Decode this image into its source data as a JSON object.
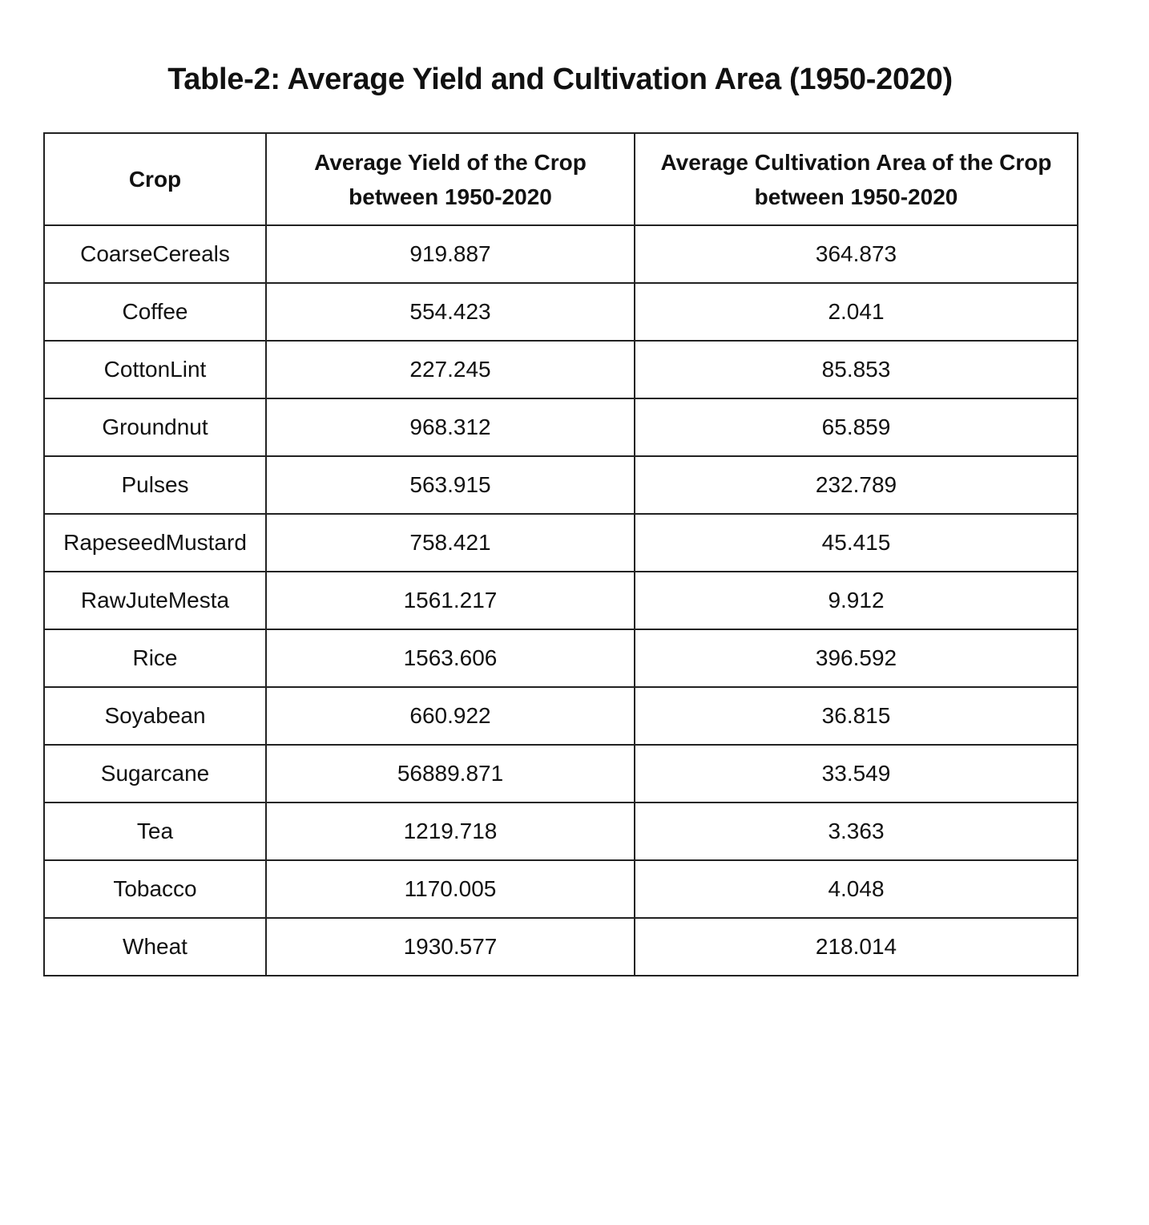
{
  "title": "Table-2: Average Yield and Cultivation Area (1950-2020)",
  "table": {
    "headers": [
      "Crop",
      "Average Yield of the Crop between 1950-2020",
      "Average Cultivation Area of the Crop between 1950-2020"
    ],
    "rows": [
      [
        "CoarseCereals",
        "919.887",
        "364.873"
      ],
      [
        "Coffee",
        "554.423",
        "2.041"
      ],
      [
        "CottonLint",
        "227.245",
        "85.853"
      ],
      [
        "Groundnut",
        "968.312",
        "65.859"
      ],
      [
        "Pulses",
        "563.915",
        "232.789"
      ],
      [
        "RapeseedMustard",
        "758.421",
        "45.415"
      ],
      [
        "RawJuteMesta",
        "1561.217",
        "9.912"
      ],
      [
        "Rice",
        "1563.606",
        "396.592"
      ],
      [
        "Soyabean",
        "660.922",
        "36.815"
      ],
      [
        "Sugarcane",
        "56889.871",
        "33.549"
      ],
      [
        "Tea",
        "1219.718",
        "3.363"
      ],
      [
        "Tobacco",
        "1170.005",
        "4.048"
      ],
      [
        "Wheat",
        "1930.577",
        "218.014"
      ]
    ]
  }
}
